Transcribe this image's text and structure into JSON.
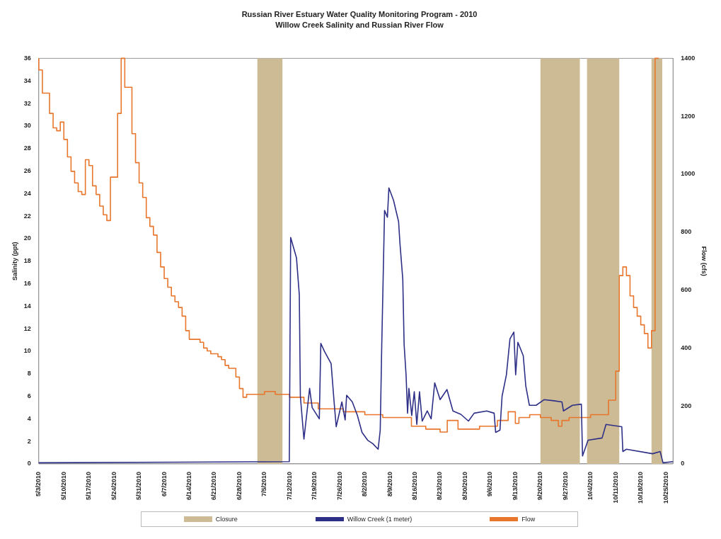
{
  "chart_data": {
    "type": "line",
    "title": "Russian River Estuary Water Quality Monitoring Program - 2010",
    "subtitle": "Willow Creek Salinity and Russian River Flow",
    "ylabel": "Salinity (ppt)",
    "y2label": "Flow (cfs)",
    "xlim": [
      "2010-05-03",
      "2010-10-27"
    ],
    "xticks": [
      {
        "value": "2010-05-03",
        "label": "5/3/2010"
      },
      {
        "value": "2010-05-10",
        "label": "5/10/2010"
      },
      {
        "value": "2010-05-17",
        "label": "5/17/2010"
      },
      {
        "value": "2010-05-24",
        "label": "5/24/2010"
      },
      {
        "value": "2010-05-31",
        "label": "5/31/2010"
      },
      {
        "value": "2010-06-07",
        "label": "6/7/2010"
      },
      {
        "value": "2010-06-14",
        "label": "6/14/2010"
      },
      {
        "value": "2010-06-21",
        "label": "6/21/2010"
      },
      {
        "value": "2010-06-28",
        "label": "6/28/2010"
      },
      {
        "value": "2010-07-05",
        "label": "7/5/2010"
      },
      {
        "value": "2010-07-12",
        "label": "7/12/2010"
      },
      {
        "value": "2010-07-19",
        "label": "7/19/2010"
      },
      {
        "value": "2010-07-26",
        "label": "7/26/2010"
      },
      {
        "value": "2010-08-02",
        "label": "8/2/2010"
      },
      {
        "value": "2010-08-09",
        "label": "8/9/2010"
      },
      {
        "value": "2010-08-16",
        "label": "8/16/2010"
      },
      {
        "value": "2010-08-23",
        "label": "8/23/2010"
      },
      {
        "value": "2010-08-30",
        "label": "8/30/2010"
      },
      {
        "value": "2010-09-06",
        "label": "9/6/2010"
      },
      {
        "value": "2010-09-13",
        "label": "9/13/2010"
      },
      {
        "value": "2010-09-20",
        "label": "9/20/2010"
      },
      {
        "value": "2010-09-27",
        "label": "9/27/2010"
      },
      {
        "value": "2010-10-04",
        "label": "10/4/2010"
      },
      {
        "value": "2010-10-11",
        "label": "10/11/2010"
      },
      {
        "value": "2010-10-18",
        "label": "10/18/2010"
      },
      {
        "value": "2010-10-25",
        "label": "10/25/2010"
      }
    ],
    "ylim": [
      0,
      36
    ],
    "yticks": [
      0,
      2,
      4,
      6,
      8,
      10,
      12,
      14,
      16,
      18,
      20,
      22,
      24,
      26,
      28,
      30,
      32,
      34,
      36
    ],
    "y2lim": [
      0,
      1400
    ],
    "y2ticks": [
      0,
      200,
      400,
      600,
      800,
      1000,
      1200,
      1400
    ],
    "grid": false,
    "legend": "bottom",
    "marker": "none",
    "bands": [
      {
        "axis": "x",
        "from": "2010-07-03",
        "to": "2010-07-10",
        "label": "Closure",
        "color": "#cdbb96"
      },
      {
        "axis": "x",
        "from": "2010-09-20",
        "to": "2010-10-01",
        "color": "#cdbb96"
      },
      {
        "axis": "x",
        "from": "2010-10-03",
        "to": "2010-10-12",
        "color": "#cdbb96"
      },
      {
        "axis": "x",
        "from": "2010-10-21",
        "to": "2010-10-24",
        "color": "#cdbb96"
      }
    ],
    "series": [
      {
        "name": "Willow Creek (1 meter)",
        "type": "line",
        "color": "#2e2f86",
        "x": [
          "2010-05-03",
          "2010-07-11T22:00",
          "2010-07-12T07:00",
          "2010-07-13T22:00",
          "2010-07-14T17:00",
          "2010-07-15T00:00",
          "2010-07-16T00:00",
          "2010-07-17T14:00",
          "2010-07-18T07:00",
          "2010-07-20T07:00",
          "2010-07-20T17:00",
          "2010-07-21T17:00",
          "2010-07-23T14:00",
          "2010-07-24T10:00",
          "2010-07-25T00:00",
          "2010-07-26T14:00",
          "2010-07-27T12:00",
          "2010-07-27T22:00",
          "2010-07-29T12:00",
          "2010-07-30T22:00",
          "2010-08-01T05:00",
          "2010-08-02T19:00",
          "2010-08-04T05:00",
          "2010-08-05T17:00",
          "2010-08-06T07:00",
          "2010-08-06T17:00",
          "2010-08-07T12:00",
          "2010-08-08T07:00",
          "2010-08-08T17:00",
          "2010-08-10T00:00",
          "2010-08-11T10:00",
          "2010-08-11T19:00",
          "2010-08-12T14:00",
          "2010-08-12T23:00",
          "2010-08-13T12:00",
          "2010-08-13T22:00",
          "2010-08-14T07:00",
          "2010-08-15T02:00",
          "2010-08-15T19:00",
          "2010-08-16T12:00",
          "2010-08-17T06:00",
          "2010-08-18T00:00",
          "2010-08-19T10:00",
          "2010-08-20T12:00",
          "2010-08-21T12:00",
          "2010-08-23T00:00",
          "2010-08-24T22:00",
          "2010-08-26T14:00",
          "2010-08-28T19:00",
          "2010-08-30T22:00",
          "2010-09-01T12:00",
          "2010-09-05T00:00",
          "2010-09-07T02:00",
          "2010-09-07T12:00",
          "2010-09-08T17:00",
          "2010-09-09T07:00",
          "2010-09-10T12:00",
          "2010-09-11T12:00",
          "2010-09-12T14:00",
          "2010-09-13T02:00",
          "2010-09-13T17:00",
          "2010-09-15T05:00",
          "2010-09-15T22:00",
          "2010-09-16T22:00",
          "2010-09-18T19:00",
          "2010-09-21T00:00",
          "2010-09-23T19:00",
          "2010-09-26T00:00",
          "2010-09-26T10:00",
          "2010-09-28T22:00",
          "2010-10-01T10:00",
          "2010-10-01T18:00",
          "2010-10-03T07:00",
          "2010-10-07T05:00",
          "2010-10-08T07:00",
          "2010-10-12T17:00",
          "2010-10-13T00:00",
          "2010-10-14T00:00",
          "2010-10-21T07:00",
          "2010-10-23T10:00",
          "2010-10-24T05:00",
          "2010-10-27"
        ],
        "values": [
          0.1,
          0.2,
          20.1,
          18.3,
          15,
          6,
          2.2,
          6.7,
          5,
          4,
          10.7,
          10,
          8.9,
          5.5,
          3.3,
          5.5,
          3.9,
          6.1,
          5.5,
          4.3,
          2.8,
          2.1,
          1.8,
          1.3,
          3,
          10.4,
          22.5,
          21.9,
          24.5,
          23.4,
          21.5,
          19.6,
          16.4,
          10.6,
          7.9,
          4.5,
          6.7,
          4.3,
          6.4,
          3.5,
          6.4,
          3.8,
          4.7,
          4,
          7.2,
          5.7,
          6.6,
          4.7,
          4.4,
          3.8,
          4.5,
          4.7,
          4.5,
          2.8,
          3,
          6,
          7.9,
          11.1,
          11.7,
          7.9,
          10.8,
          9.6,
          6.9,
          5.2,
          5.2,
          5.7,
          5.6,
          5.5,
          4.7,
          5.2,
          5.3,
          0.7,
          2.1,
          2.3,
          3.5,
          3.3,
          1.1,
          1.3,
          0.9,
          1.1,
          0.1,
          0.2
        ]
      },
      {
        "name": "Flow",
        "type": "step",
        "axis": "y2",
        "color": "#e8762c",
        "x": [
          "2010-05-03",
          "2010-05-04",
          "2010-05-06",
          "2010-05-07",
          "2010-05-08",
          "2010-05-09",
          "2010-05-10",
          "2010-05-11",
          "2010-05-12",
          "2010-05-13",
          "2010-05-14",
          "2010-05-15",
          "2010-05-16",
          "2010-05-17",
          "2010-05-18",
          "2010-05-19",
          "2010-05-20",
          "2010-05-21",
          "2010-05-22",
          "2010-05-23",
          "2010-05-25",
          "2010-05-26",
          "2010-05-27",
          "2010-05-29",
          "2010-05-30",
          "2010-05-31",
          "2010-06-01",
          "2010-06-02",
          "2010-06-03",
          "2010-06-04",
          "2010-06-05",
          "2010-06-06",
          "2010-06-07",
          "2010-06-08",
          "2010-06-09",
          "2010-06-10",
          "2010-06-11",
          "2010-06-12",
          "2010-06-13",
          "2010-06-14",
          "2010-06-17",
          "2010-06-18",
          "2010-06-19",
          "2010-06-20",
          "2010-06-22",
          "2010-06-23",
          "2010-06-24",
          "2010-06-25",
          "2010-06-26",
          "2010-06-27",
          "2010-06-28",
          "2010-06-29",
          "2010-06-30",
          "2010-07-02",
          "2010-07-05",
          "2010-07-08",
          "2010-07-12",
          "2010-07-16",
          "2010-07-20",
          "2010-07-23",
          "2010-07-27",
          "2010-08-02",
          "2010-08-07",
          "2010-08-15",
          "2010-08-19",
          "2010-08-23",
          "2010-08-25",
          "2010-08-28",
          "2010-09-03",
          "2010-09-08",
          "2010-09-11",
          "2010-09-13",
          "2010-09-14",
          "2010-09-17",
          "2010-09-20",
          "2010-09-23",
          "2010-09-25",
          "2010-09-26",
          "2010-09-28",
          "2010-10-01",
          "2010-10-04",
          "2010-10-09",
          "2010-10-11",
          "2010-10-12",
          "2010-10-13",
          "2010-10-14",
          "2010-10-15",
          "2010-10-16",
          "2010-10-17",
          "2010-10-18",
          "2010-10-19",
          "2010-10-20",
          "2010-10-21",
          "2010-10-22",
          "2010-10-23"
        ],
        "values": [
          1400,
          1360,
          1280,
          1210,
          1160,
          1150,
          1180,
          1120,
          1060,
          1010,
          970,
          940,
          930,
          1050,
          1030,
          960,
          930,
          890,
          860,
          840,
          990,
          1210,
          1400,
          1300,
          1140,
          1040,
          970,
          920,
          850,
          820,
          790,
          730,
          680,
          640,
          610,
          580,
          560,
          540,
          510,
          460,
          430,
          420,
          400,
          390,
          380,
          370,
          360,
          340,
          330,
          330,
          300,
          260,
          230,
          240,
          240,
          250,
          240,
          230,
          210,
          190,
          190,
          180,
          170,
          160,
          130,
          120,
          110,
          150,
          120,
          130,
          150,
          180,
          140,
          160,
          170,
          160,
          150,
          130,
          150,
          160,
          160,
          170,
          220,
          320,
          650,
          680,
          650,
          580,
          540,
          510,
          480,
          450,
          400,
          460,
          1400
        ]
      }
    ]
  }
}
